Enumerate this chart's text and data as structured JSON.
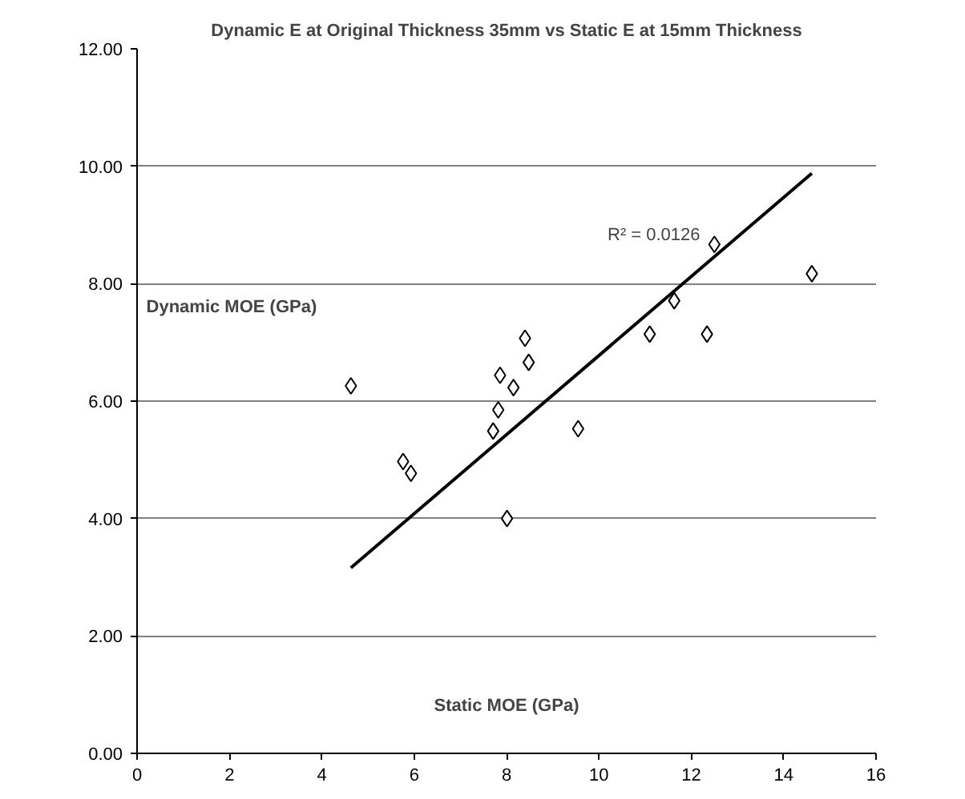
{
  "chart_data": {
    "type": "scatter",
    "title": "Dynamic E at Original Thickness 35mm vs Static E at 15mm Thickness",
    "xlabel": "Static MOE (GPa)",
    "ylabel": "Dynamic MOE (GPa)",
    "x": [
      4.63,
      5.76,
      5.93,
      7.71,
      7.82,
      7.86,
      8.15,
      8.4,
      8.48,
      8.01,
      9.55,
      11.1,
      11.63,
      12.34,
      12.5,
      14.61
    ],
    "series": [
      {
        "color": "#000000",
        "marker": "diamond",
        "values": [
          6.26,
          4.97,
          4.77,
          5.49,
          5.85,
          6.44,
          6.23,
          7.07,
          6.66,
          4.0,
          5.53,
          7.14,
          7.71,
          7.14,
          8.67,
          8.17
        ]
      },
      {
        "type": "line",
        "color": "#000000",
        "x": [
          4.63,
          14.61
        ],
        "values": [
          3.16,
          9.88
        ]
      }
    ],
    "annotations": [
      "R² = 0.0126"
    ],
    "xlim": [
      0,
      16
    ],
    "xticks": [
      0,
      2,
      4,
      6,
      8,
      10,
      12,
      14,
      16
    ],
    "ylim": [
      0,
      12
    ],
    "yticks": [
      {
        "value": 0,
        "label": "0.00"
      },
      {
        "value": 2,
        "label": "2.00"
      },
      {
        "value": 4,
        "label": "4.00"
      },
      {
        "value": 6,
        "label": "6.00"
      },
      {
        "value": 8,
        "label": "8.00"
      },
      {
        "value": 10,
        "label": "10.00"
      },
      {
        "value": 12,
        "label": "12.00"
      }
    ],
    "grid": "y"
  }
}
